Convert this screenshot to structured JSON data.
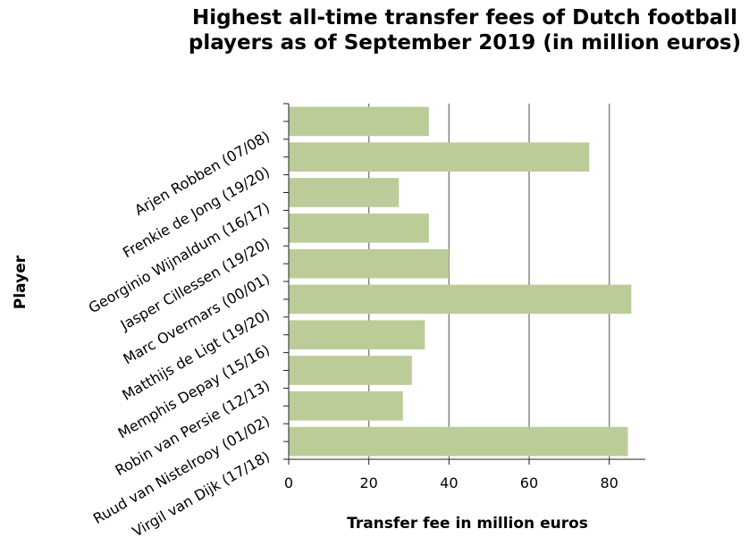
{
  "chart_data": {
    "type": "bar",
    "orientation": "horizontal",
    "title": "Highest all-time transfer fees of Dutch football players as of September 2019 (in million euros)",
    "xlabel": "Transfer fee in million euros",
    "ylabel": "Player",
    "categories": [
      "Arjen Robben (07/08)",
      "Frenkie de Jong (19/20)",
      "Georginio Wijnaldum (16/17)",
      "Jasper Cillessen (19/20)",
      "Marc Overmars (00/01)",
      "Matthijs de Ligt (19/20)",
      "Memphis Depay (15/16)",
      "Robin van Persie (12/13)",
      "Ruud van Nistelrooy (01/02)",
      "Virgil van Dijk (17/18)"
    ],
    "values": [
      35,
      75,
      27.5,
      35,
      40,
      85.5,
      34,
      30.75,
      28.5,
      84.65
    ],
    "xlim": [
      0,
      89
    ],
    "xticks": [
      0,
      20,
      40,
      60,
      80
    ],
    "grid": "vertical",
    "bar_color": "#bccc99"
  }
}
